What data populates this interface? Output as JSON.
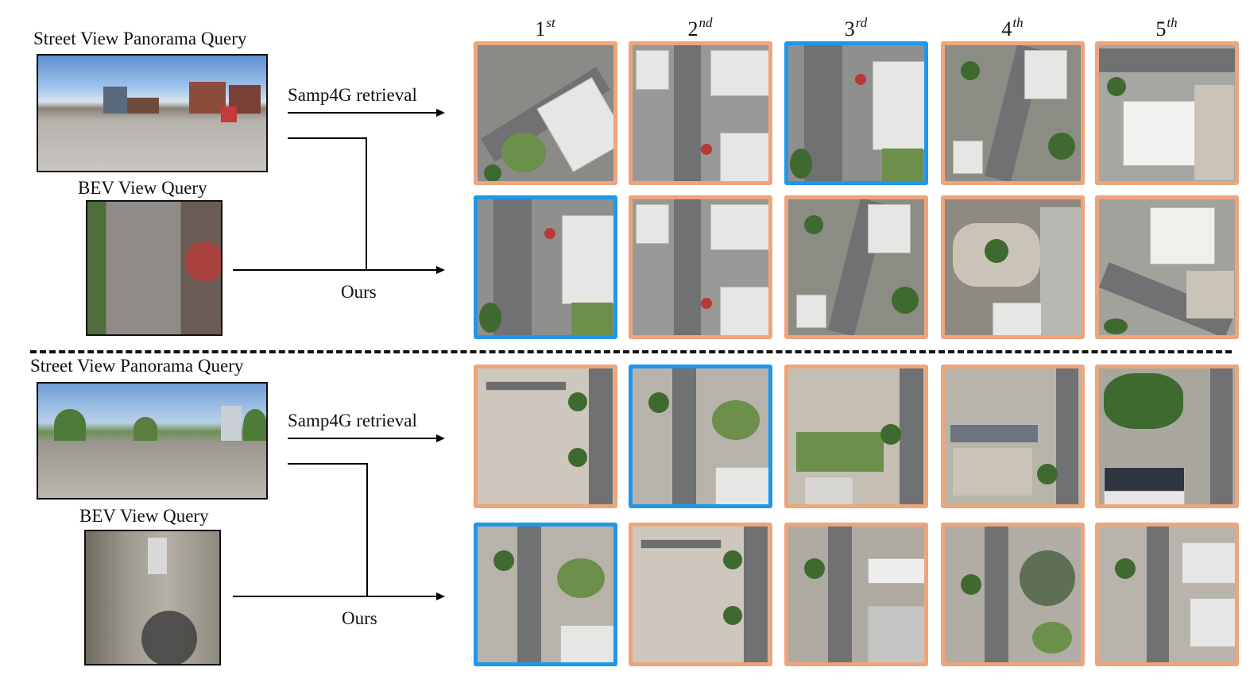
{
  "ranks": [
    {
      "num": "1",
      "suffix": "st"
    },
    {
      "num": "2",
      "suffix": "nd"
    },
    {
      "num": "3",
      "suffix": "rd"
    },
    {
      "num": "4",
      "suffix": "th"
    },
    {
      "num": "5",
      "suffix": "th"
    }
  ],
  "examples": [
    {
      "pano_label": "Street View Panorama Query",
      "bev_label": "BEV View Query",
      "baseline_label": "Samp4G retrieval",
      "ours_label": "Ours",
      "baseline_row": {
        "correct_rank": 3
      },
      "ours_row": {
        "correct_rank": 1
      }
    },
    {
      "pano_label": "Street View Panorama Query",
      "bev_label": "BEV View Query",
      "baseline_label": "Samp4G retrieval",
      "ours_label": "Ours",
      "baseline_row": {
        "correct_rank": 2
      },
      "ours_row": {
        "correct_rank": 1
      }
    }
  ],
  "colors": {
    "correct_border": "#1f97ea",
    "incorrect_border": "#eda57c"
  }
}
